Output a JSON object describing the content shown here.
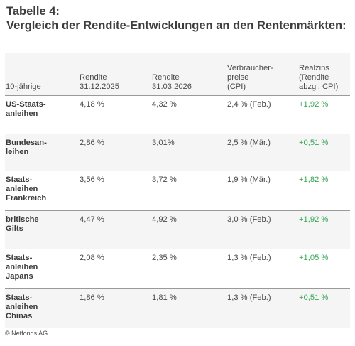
{
  "title": {
    "line1": "Tabelle 4:",
    "line2": "Vergleich der Rendite-Entwicklungen an den Rentenmärkten:"
  },
  "table": {
    "headers": [
      "10-jährige",
      "Rendite\n31.12.2025",
      "Rendite\n31.03.2026",
      "Verbraucher-\npreise\n(CPI)",
      "Realzins\n(Rendite\nabzgl. CPI)"
    ],
    "rows": [
      {
        "label": "US-Staats-\nanleihen",
        "r2025": "4,18 %",
        "r2026": "4,32 %",
        "cpi": "2,4 % (Feb.)",
        "real": "+1,92 %"
      },
      {
        "label": "Bundesan-\nleihen",
        "r2025": "2,86 %",
        "r2026": "3,01%",
        "cpi": "2,5 % (Mär.)",
        "real": "+0,51 %"
      },
      {
        "label": "Staats-\nanleihen\nFrankreich",
        "r2025": "3,56 %",
        "r2026": "3,72 %",
        "cpi": "1,9 % (Mär.)",
        "real": "+1,82 %"
      },
      {
        "label": "britische\nGilts",
        "r2025": "4,47 %",
        "r2026": "4,92 %",
        "cpi": "3,0 % (Feb.)",
        "real": "+1,92 %"
      },
      {
        "label": "Staats-\nanleihen\nJapans",
        "r2025": "2,08 %",
        "r2026": "2,35 %",
        "cpi": "1,3 % (Feb.)",
        "real": "+1,05 %"
      },
      {
        "label": "Staats-\nanleihen\nChinas",
        "r2025": "1,86 %",
        "r2026": "1,81 %",
        "cpi": "1,3 % (Feb.)",
        "real": "+0,51 %"
      }
    ]
  },
  "footer": "© Netfonds AG",
  "colors": {
    "positive": "#3aa657",
    "rule": "#9a9a9a",
    "header_bg": "#f5f5f5"
  }
}
